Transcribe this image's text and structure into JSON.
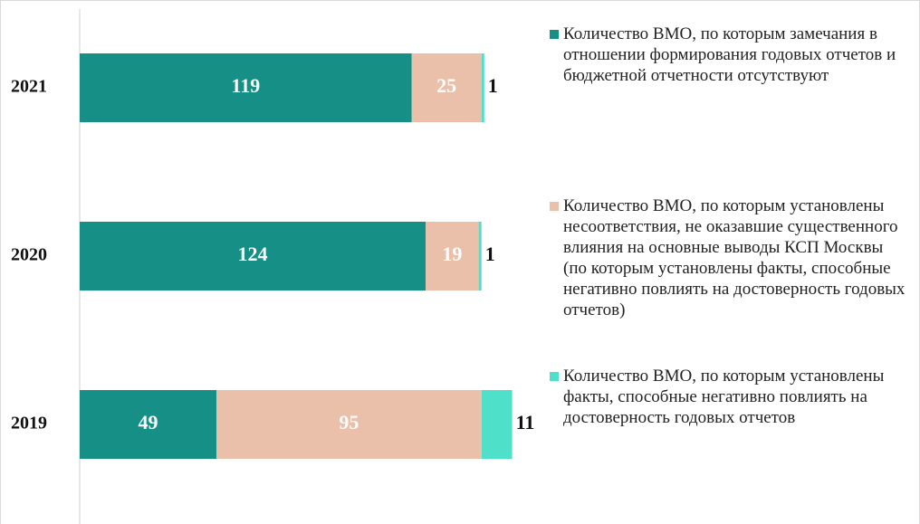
{
  "chart_data": {
    "type": "stacked_barh",
    "categories": [
      "2021",
      "2020",
      "2019"
    ],
    "series": [
      {
        "name": "Количество ВМО, по которым замечания в отношении формирования годовых отчетов и бюджетной отчетности отсутствуют",
        "color": "#168f87",
        "values": [
          119,
          124,
          49
        ]
      },
      {
        "name": "Количество ВМО, по которым установлены несоответствия, не оказавшие существенного влияния на основные выводы КСП Москвы (по которым установлены факты, способные негативно повлиять на достоверность годовых отчетов)",
        "color": "#ebc0aa",
        "values": [
          25,
          19,
          95
        ]
      },
      {
        "name": "Количество ВМО, по которым установлены факты, способные негативно повлиять на достоверность годовых отчетов",
        "color": "#4fe0c9",
        "values": [
          1,
          1,
          11
        ]
      }
    ],
    "xlim": [
      0,
      160
    ],
    "legend": "right"
  }
}
